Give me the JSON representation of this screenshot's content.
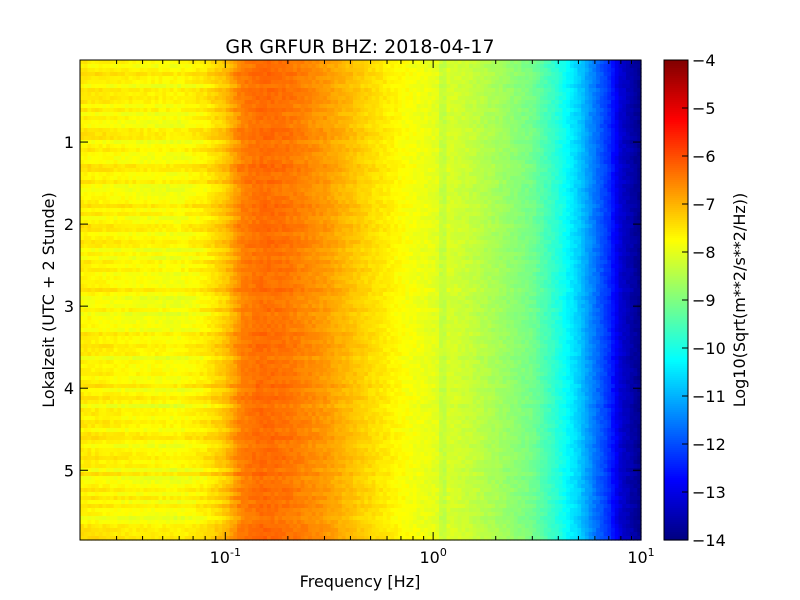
{
  "chart_data": {
    "type": "heatmap",
    "title": "GR GRFUR BHZ: 2018-04-17",
    "xlabel": "Frequency [Hz]",
    "ylabel": "Lokalzeit (UTC + 2 Stunde)",
    "x_scale": "log",
    "xlim": [
      0.02,
      10
    ],
    "ylim": [
      5.85,
      0
    ],
    "x_ticks": [
      {
        "value": 0.1,
        "base": "10",
        "exp": "-1"
      },
      {
        "value": 1,
        "base": "10",
        "exp": "0"
      },
      {
        "value": 10,
        "base": "10",
        "exp": "1"
      }
    ],
    "y_ticks": [
      {
        "value": 1,
        "label": "1"
      },
      {
        "value": 2,
        "label": "2"
      },
      {
        "value": 3,
        "label": "3"
      },
      {
        "value": 4,
        "label": "4"
      },
      {
        "value": 5,
        "label": "5"
      }
    ],
    "colorbar": {
      "label": "Log10(Sqrt(m**2/s**2/Hz))",
      "range": [
        -14,
        -4
      ],
      "colormap": "jet",
      "ticks": [
        {
          "value": -4,
          "label": "−4"
        },
        {
          "value": -5,
          "label": "−5"
        },
        {
          "value": -6,
          "label": "−6"
        },
        {
          "value": -7,
          "label": "−7"
        },
        {
          "value": -8,
          "label": "−8"
        },
        {
          "value": -9,
          "label": "−9"
        },
        {
          "value": -10,
          "label": "−10"
        },
        {
          "value": -11,
          "label": "−11"
        },
        {
          "value": -12,
          "label": "−12"
        },
        {
          "value": -13,
          "label": "−13"
        },
        {
          "value": -14,
          "label": "−14"
        }
      ]
    },
    "spectrum_profile": {
      "frequency_hz": [
        0.02,
        0.04,
        0.06,
        0.08,
        0.1,
        0.12,
        0.15,
        0.2,
        0.3,
        0.5,
        0.7,
        1.0,
        1.5,
        2.0,
        3.0,
        4.0,
        5.0,
        6.0,
        7.0,
        8.0,
        10.0
      ],
      "log10_psd": [
        -7.6,
        -7.75,
        -7.8,
        -7.6,
        -7.2,
        -6.5,
        -6.3,
        -6.4,
        -6.75,
        -7.4,
        -7.75,
        -8.0,
        -8.3,
        -8.6,
        -9.1,
        -9.9,
        -10.7,
        -11.6,
        -12.3,
        -13.2,
        -13.9
      ]
    }
  }
}
